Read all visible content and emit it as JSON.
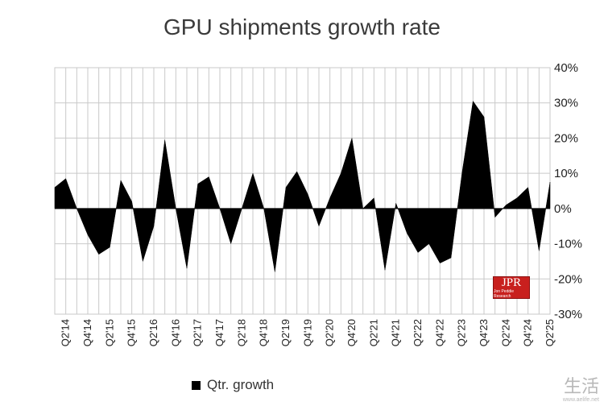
{
  "chart_data": {
    "type": "area",
    "title": "GPU shipments growth rate",
    "legend": {
      "label": "Qtr. growth",
      "position": "bottom-left"
    },
    "y_ticks": [
      "40%",
      "30%",
      "20%",
      "10%",
      "0%",
      "-10%",
      "-20%",
      "-30%"
    ],
    "ylim": [
      -30,
      40
    ],
    "grid": true,
    "fill_color": "#000000",
    "x": [
      "Q1'14",
      "Q2'14",
      "Q3'14",
      "Q4'14",
      "Q1'15",
      "Q2'15",
      "Q3'15",
      "Q4'15",
      "Q1'16",
      "Q2'16",
      "Q3'16",
      "Q4'16",
      "Q1'17",
      "Q2'17",
      "Q3'17",
      "Q4'17",
      "Q1'18",
      "Q2'18",
      "Q3'18",
      "Q4'18",
      "Q1'19",
      "Q2'19",
      "Q3'19",
      "Q4'19",
      "Q1'20",
      "Q2'20",
      "Q3'20",
      "Q4'20",
      "Q1'21",
      "Q2'21",
      "Q3'21",
      "Q4'21",
      "Q1'22",
      "Q2'22",
      "Q3'22",
      "Q4'22",
      "Q1'23",
      "Q2'23",
      "Q3'23",
      "Q4'23",
      "Q1'24",
      "Q2'24",
      "Q3'24",
      "Q4'24",
      "Q1'25",
      "Q2'25"
    ],
    "x_tick_labels": [
      "Q2'14",
      "Q4'14",
      "Q2'15",
      "Q4'15",
      "Q2'16",
      "Q4'16",
      "Q2'17",
      "Q4'17",
      "Q2'18",
      "Q4'18",
      "Q2'19",
      "Q4'19",
      "Q2'20",
      "Q4'20",
      "Q2'21",
      "Q4'21",
      "Q2'22",
      "Q4'22",
      "Q2'23",
      "Q4'23",
      "Q2'24",
      "Q4'24",
      "Q2'25"
    ],
    "series": [
      {
        "name": "Qtr. growth",
        "values": [
          6,
          8.5,
          0,
          -7.5,
          -13,
          -11,
          8,
          2,
          -15,
          -5,
          19.5,
          0,
          -17,
          7,
          9,
          0,
          -10,
          0,
          10,
          0,
          -18,
          6,
          10.5,
          4,
          -5,
          3,
          10,
          20,
          0,
          3,
          -17.5,
          1.5,
          -7,
          -12.5,
          -10,
          -15.5,
          -14,
          10,
          30.5,
          26,
          -2.5,
          1,
          3,
          6,
          -12,
          7.5
        ]
      }
    ]
  },
  "logo": {
    "text": "JPR",
    "subtext": "Jon Peddie Research"
  },
  "watermark": {
    "text": "生活",
    "subtext": "www.aelife.net"
  }
}
